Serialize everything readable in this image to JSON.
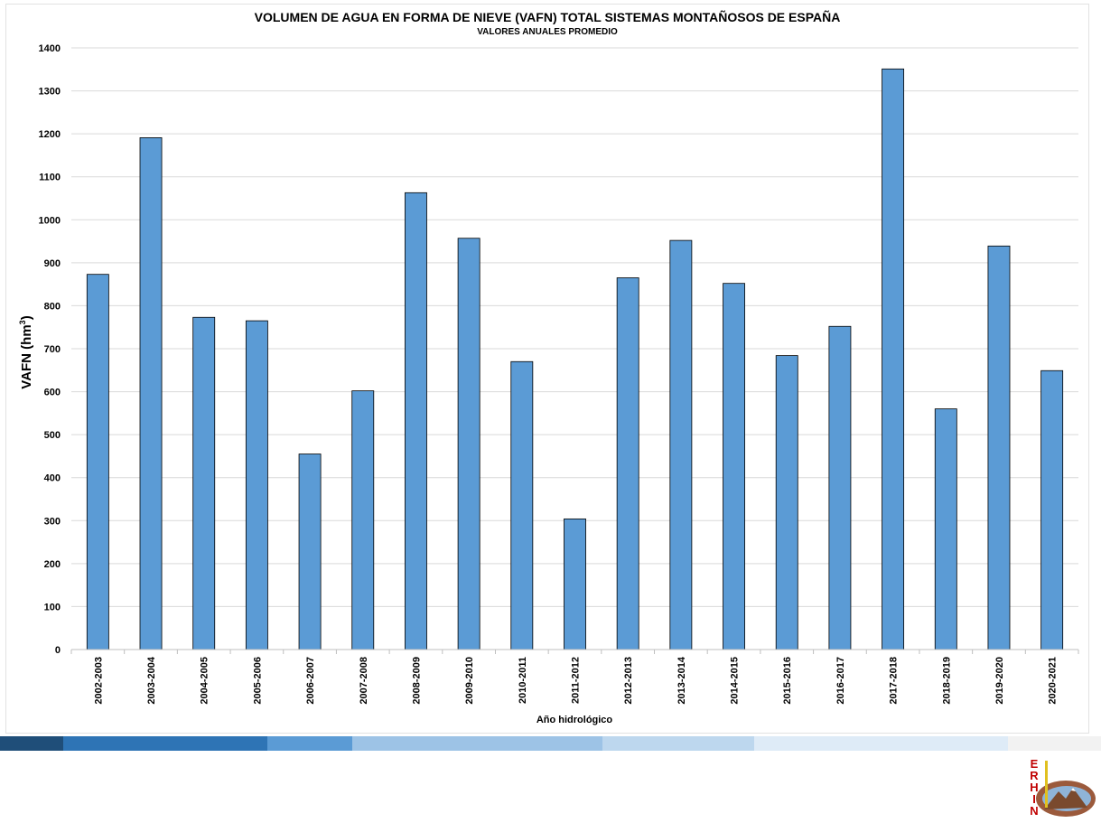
{
  "chart_data": {
    "type": "bar",
    "title": "VOLUMEN DE AGUA EN FORMA DE NIEVE (VAFN) TOTAL SISTEMAS MONTAÑOSOS DE ESPAÑA",
    "subtitle": "VALORES ANUALES PROMEDIO",
    "xlabel": "Año hidrológico",
    "ylabel_main": "VAFN (hm",
    "ylabel_sup": "3",
    "ylabel_close": ")",
    "ylim": [
      0,
      1400
    ],
    "yticks": [
      0,
      100,
      200,
      300,
      400,
      500,
      600,
      700,
      800,
      900,
      1000,
      1100,
      1200,
      1300,
      1400
    ],
    "grid": true,
    "categories": [
      "2002-2003",
      "2003-2004",
      "2004-2005",
      "2005-2006",
      "2006-2007",
      "2007-2008",
      "2008-2009",
      "2009-2010",
      "2010-2011",
      "2011-2012",
      "2012-2013",
      "2013-2014",
      "2014-2015",
      "2015-2016",
      "2016-2017",
      "2017-2018",
      "2018-2019",
      "2019-2020",
      "2020-2021"
    ],
    "values": [
      873,
      1191,
      773,
      765,
      455,
      602,
      1063,
      957,
      670,
      304,
      865,
      952,
      852,
      684,
      752,
      1351,
      560,
      939,
      649
    ],
    "bar_color": "#5b9bd5",
    "bar_stroke": "#000000"
  },
  "band_colors": [
    "#1f4e79",
    "#2e74b5",
    "#5b9bd5",
    "#9dc3e6",
    "#bdd7ee",
    "#deebf7",
    "#f2f2f2"
  ],
  "logo": {
    "letters": [
      "E",
      "R",
      "H",
      "I",
      "N"
    ],
    "letter_color": "#c00000",
    "icon": "erhin-mountain-logo"
  }
}
